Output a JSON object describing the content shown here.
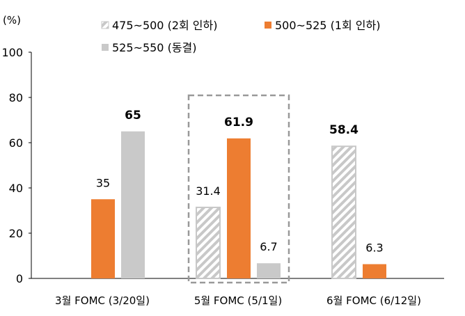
{
  "chart_data": {
    "type": "bar",
    "ylabel": "(%)",
    "ylim": [
      0,
      100
    ],
    "yticks": [
      0,
      20,
      40,
      60,
      80,
      100
    ],
    "grid": false,
    "legend_placement": "top",
    "categories": [
      "3월 FOMC (3/20일)",
      "5월 FOMC (5/1일)",
      "6월 FOMC (6/12일)"
    ],
    "series": [
      {
        "name": "475~500 (2회 인하)",
        "values": [
          null,
          31.4,
          58.4
        ],
        "color": "#c8c8c8",
        "pattern": "hatched"
      },
      {
        "name": "500~525 (1회 인하)",
        "values": [
          35,
          61.9,
          6.3
        ],
        "color": "#ed7d31"
      },
      {
        "name": "525~550 (동결)",
        "values": [
          65,
          6.7,
          null
        ],
        "color": "#c9c9c9"
      }
    ],
    "data_labels": [
      [
        null,
        "35",
        "65"
      ],
      [
        "31.4",
        "61.9",
        "6.7"
      ],
      [
        "58.4",
        "6.3",
        null
      ]
    ],
    "bold_labels": [
      "65",
      "61.9",
      "58.4"
    ],
    "highlight_category": "5월 FOMC (5/1일)"
  }
}
